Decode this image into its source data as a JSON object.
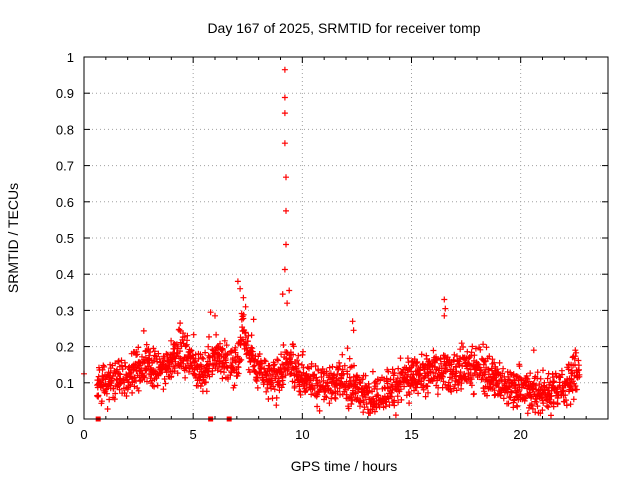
{
  "chart_data": {
    "type": "scatter",
    "title": "Day 167 of 2025, SRMTID for receiver tomp",
    "xlabel": "GPS time / hours",
    "ylabel": "SRMTID / TECUs",
    "xlim": [
      0,
      24
    ],
    "ylim": [
      0,
      1
    ],
    "grid": true,
    "x_ticks": [
      0,
      5,
      10,
      15,
      20
    ],
    "x_tick_labels": [
      "0",
      "5",
      "10",
      "15",
      "20"
    ],
    "y_ticks": [
      0,
      0.1,
      0.2,
      0.3,
      0.4,
      0.5,
      0.6,
      0.7,
      0.8,
      0.9,
      1
    ],
    "y_tick_labels": [
      "0",
      "0.1",
      "0.2",
      "0.3",
      "0.4",
      "0.5",
      "0.6",
      "0.7",
      "0.8",
      "0.9",
      "1"
    ],
    "marker_color": "#ff0000",
    "marker": "plus",
    "baseline_trend": [
      {
        "x": 0.0,
        "y": 0.12
      },
      {
        "x": 0.6,
        "y": 0.09
      },
      {
        "x": 1.0,
        "y": 0.1
      },
      {
        "x": 2.0,
        "y": 0.12
      },
      {
        "x": 3.0,
        "y": 0.15
      },
      {
        "x": 3.5,
        "y": 0.14
      },
      {
        "x": 4.0,
        "y": 0.16
      },
      {
        "x": 4.5,
        "y": 0.19
      },
      {
        "x": 5.0,
        "y": 0.15
      },
      {
        "x": 5.5,
        "y": 0.12
      },
      {
        "x": 6.0,
        "y": 0.18
      },
      {
        "x": 6.5,
        "y": 0.16
      },
      {
        "x": 7.0,
        "y": 0.15
      },
      {
        "x": 7.3,
        "y": 0.25
      },
      {
        "x": 7.6,
        "y": 0.17
      },
      {
        "x": 8.0,
        "y": 0.14
      },
      {
        "x": 8.5,
        "y": 0.11
      },
      {
        "x": 9.0,
        "y": 0.12
      },
      {
        "x": 9.3,
        "y": 0.16
      },
      {
        "x": 10.0,
        "y": 0.11
      },
      {
        "x": 11.0,
        "y": 0.1
      },
      {
        "x": 12.0,
        "y": 0.1
      },
      {
        "x": 12.5,
        "y": 0.09
      },
      {
        "x": 13.0,
        "y": 0.06
      },
      {
        "x": 14.0,
        "y": 0.08
      },
      {
        "x": 15.0,
        "y": 0.12
      },
      {
        "x": 16.0,
        "y": 0.13
      },
      {
        "x": 17.0,
        "y": 0.13
      },
      {
        "x": 18.0,
        "y": 0.14
      },
      {
        "x": 19.0,
        "y": 0.1
      },
      {
        "x": 20.0,
        "y": 0.08
      },
      {
        "x": 21.0,
        "y": 0.07
      },
      {
        "x": 22.0,
        "y": 0.09
      },
      {
        "x": 22.7,
        "y": 0.14
      }
    ],
    "notable_points": [
      {
        "x": 0.0,
        "y": 0.125
      },
      {
        "x": 9.2,
        "y": 0.965
      },
      {
        "x": 9.2,
        "y": 0.888
      },
      {
        "x": 9.2,
        "y": 0.845
      },
      {
        "x": 9.2,
        "y": 0.762
      },
      {
        "x": 9.25,
        "y": 0.668
      },
      {
        "x": 9.25,
        "y": 0.575
      },
      {
        "x": 9.25,
        "y": 0.482
      },
      {
        "x": 9.2,
        "y": 0.413
      },
      {
        "x": 9.4,
        "y": 0.355
      },
      {
        "x": 9.1,
        "y": 0.345
      },
      {
        "x": 9.3,
        "y": 0.32
      },
      {
        "x": 7.05,
        "y": 0.38
      },
      {
        "x": 7.15,
        "y": 0.36
      },
      {
        "x": 7.3,
        "y": 0.335
      },
      {
        "x": 7.4,
        "y": 0.31
      },
      {
        "x": 16.5,
        "y": 0.33
      },
      {
        "x": 16.55,
        "y": 0.305
      },
      {
        "x": 16.5,
        "y": 0.285
      },
      {
        "x": 12.3,
        "y": 0.27
      },
      {
        "x": 12.35,
        "y": 0.245
      },
      {
        "x": 5.8,
        "y": 0.295
      },
      {
        "x": 6.0,
        "y": 0.285
      },
      {
        "x": 4.4,
        "y": 0.265
      },
      {
        "x": 20.6,
        "y": 0.19
      },
      {
        "x": 22.5,
        "y": 0.19
      }
    ],
    "zero_markers": [
      0.65,
      5.8,
      6.65
    ]
  }
}
